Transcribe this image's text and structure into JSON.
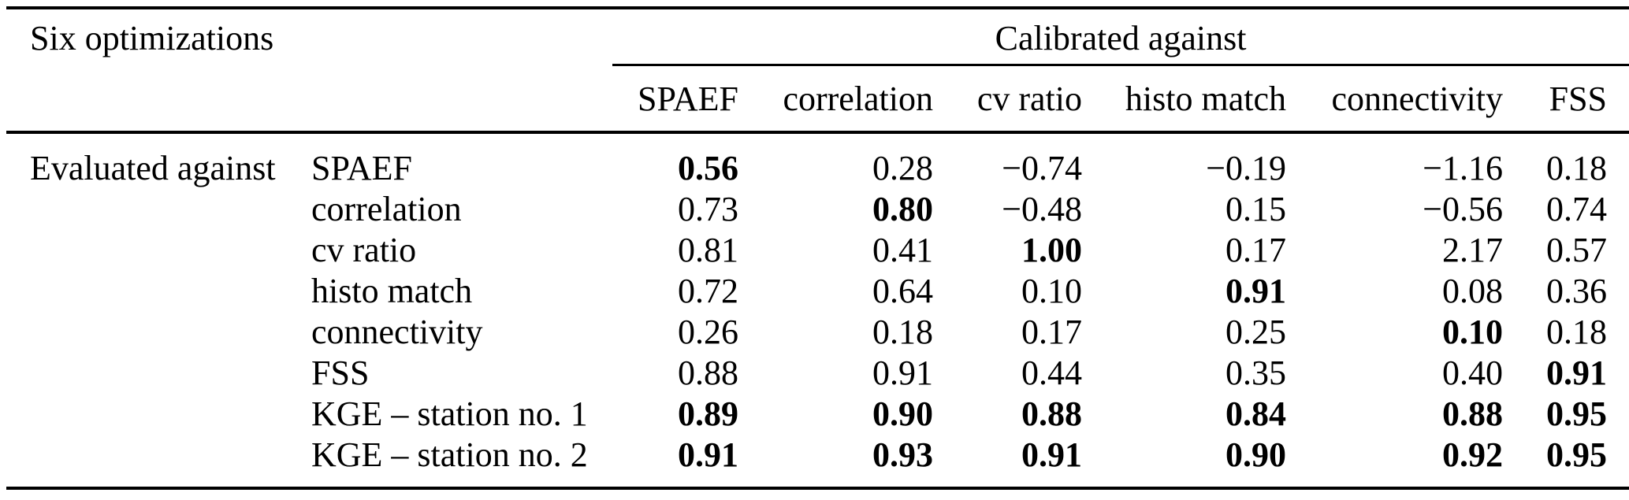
{
  "page": {
    "background": "#ffffff",
    "text_color": "#000000",
    "rule_color": "#000000"
  },
  "table": {
    "corner_header": "Six optimizations",
    "group_header": "Calibrated against",
    "row_group_label": "Evaluated against",
    "column_headers": [
      "SPAEF",
      "correlation",
      "cv ratio",
      "histo match",
      "connectivity",
      "FSS"
    ],
    "rows": [
      {
        "label": "SPAEF",
        "values": [
          "0.56",
          "0.28",
          "−0.74",
          "−0.19",
          "−1.16",
          "0.18"
        ],
        "bold": [
          true,
          false,
          false,
          false,
          false,
          false
        ]
      },
      {
        "label": "correlation",
        "values": [
          "0.73",
          "0.80",
          "−0.48",
          "0.15",
          "−0.56",
          "0.74"
        ],
        "bold": [
          false,
          true,
          false,
          false,
          false,
          false
        ]
      },
      {
        "label": "cv ratio",
        "values": [
          "0.81",
          "0.41",
          "1.00",
          "0.17",
          "2.17",
          "0.57"
        ],
        "bold": [
          false,
          false,
          true,
          false,
          false,
          false
        ]
      },
      {
        "label": "histo match",
        "values": [
          "0.72",
          "0.64",
          "0.10",
          "0.91",
          "0.08",
          "0.36"
        ],
        "bold": [
          false,
          false,
          false,
          true,
          false,
          false
        ]
      },
      {
        "label": "connectivity",
        "values": [
          "0.26",
          "0.18",
          "0.17",
          "0.25",
          "0.10",
          "0.18"
        ],
        "bold": [
          false,
          false,
          false,
          false,
          true,
          false
        ]
      },
      {
        "label": "FSS",
        "values": [
          "0.88",
          "0.91",
          "0.44",
          "0.35",
          "0.40",
          "0.91"
        ],
        "bold": [
          false,
          false,
          false,
          false,
          false,
          true
        ]
      },
      {
        "label": "KGE – station no. 1",
        "values": [
          "0.89",
          "0.90",
          "0.88",
          "0.84",
          "0.88",
          "0.95"
        ],
        "bold": [
          true,
          true,
          true,
          true,
          true,
          true
        ]
      },
      {
        "label": "KGE – station no. 2",
        "values": [
          "0.91",
          "0.93",
          "0.91",
          "0.90",
          "0.92",
          "0.95"
        ],
        "bold": [
          true,
          true,
          true,
          true,
          true,
          true
        ]
      }
    ]
  }
}
